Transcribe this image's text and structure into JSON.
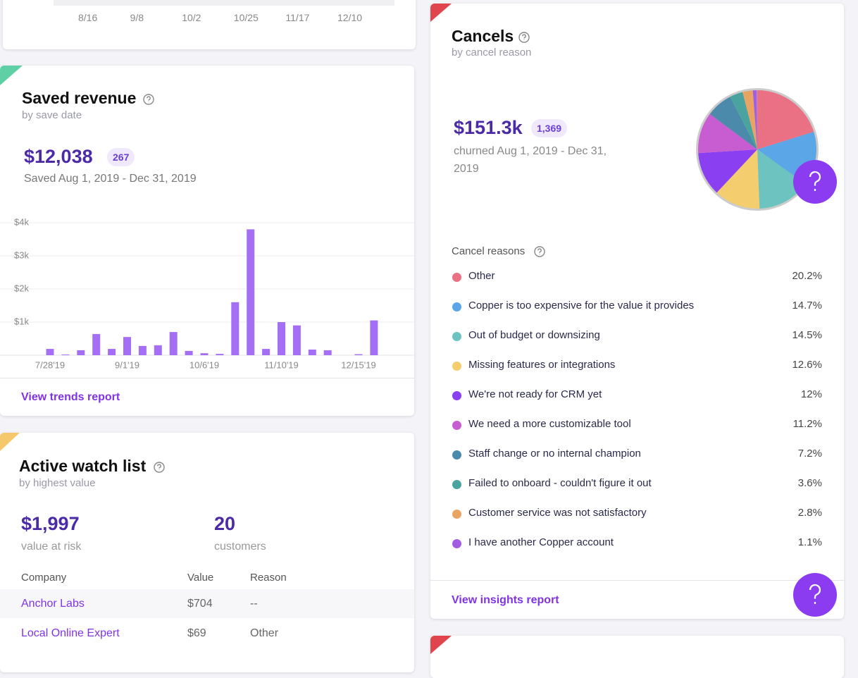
{
  "top_chart": {
    "x_labels": [
      "8/16",
      "9/8",
      "10/2",
      "10/25",
      "11/17",
      "12/10"
    ]
  },
  "saved_revenue": {
    "title": "Saved revenue",
    "subtitle": "by save date",
    "amount": "$12,038",
    "count": "267",
    "period": "Saved Aug 1, 2019 - Dec 31, 2019",
    "link": "View trends report",
    "chart_data": {
      "type": "bar",
      "categories": [
        "7/28'19",
        null,
        null,
        null,
        null,
        "9/1'19",
        null,
        null,
        null,
        null,
        "10/6'19",
        null,
        null,
        null,
        null,
        "11/10'19",
        null,
        null,
        null,
        null,
        "12/15'19",
        null
      ],
      "values": [
        190,
        20,
        150,
        640,
        190,
        550,
        280,
        300,
        700,
        130,
        60,
        40,
        1600,
        3800,
        190,
        1000,
        900,
        170,
        150,
        0,
        30,
        1050
      ],
      "color": "#a46ff5",
      "ylim": [
        0,
        4000
      ],
      "yticks": [
        {
          "value": 1000,
          "label": "$1k"
        },
        {
          "value": 2000,
          "label": "$2k"
        },
        {
          "value": 3000,
          "label": "$3k"
        },
        {
          "value": 4000,
          "label": "$4k"
        }
      ],
      "grid": true
    }
  },
  "watch_list": {
    "title": "Active watch list",
    "subtitle": "by highest value",
    "value_at_risk": "$1,997",
    "value_at_risk_label": "value at risk",
    "customers": "20",
    "customers_label": "customers",
    "table": {
      "columns": [
        "Company",
        "Value",
        "Reason"
      ],
      "rows": [
        [
          "Anchor Labs",
          "$704",
          "--"
        ],
        [
          "Local Online Expert",
          "$69",
          "Other"
        ]
      ]
    }
  },
  "cancels": {
    "title": "Cancels",
    "subtitle": "by cancel reason",
    "amount": "$151.3k",
    "count": "1,369",
    "period": "churned Aug 1, 2019 - Dec 31, 2019",
    "reasons_title": "Cancel reasons",
    "link": "View insights report",
    "chart_data": {
      "type": "pie",
      "categories": [
        "Other",
        "Copper is too expensive for the value it provides",
        "Out of budget or downsizing",
        "Missing features or integrations",
        "We're not ready for CRM yet",
        "We need a more customizable tool",
        "Staff change or no internal champion",
        "Failed to onboard - couldn't figure it out",
        "Customer service was not satisfactory",
        "I have another Copper account"
      ],
      "values": [
        20.2,
        14.7,
        14.5,
        12.6,
        12,
        11.2,
        7.2,
        3.6,
        2.8,
        1.1
      ],
      "value_labels": [
        "20.2%",
        "14.7%",
        "14.5%",
        "12.6%",
        "12%",
        "11.2%",
        "7.2%",
        "3.6%",
        "2.8%",
        "1.1%"
      ],
      "colors": [
        "#ea7083",
        "#5ba6e6",
        "#6dc3c0",
        "#f3cd6e",
        "#8a3ff0",
        "#c85dd2",
        "#4c8aab",
        "#4aa39e",
        "#e9a463",
        "#a25de0"
      ]
    }
  }
}
